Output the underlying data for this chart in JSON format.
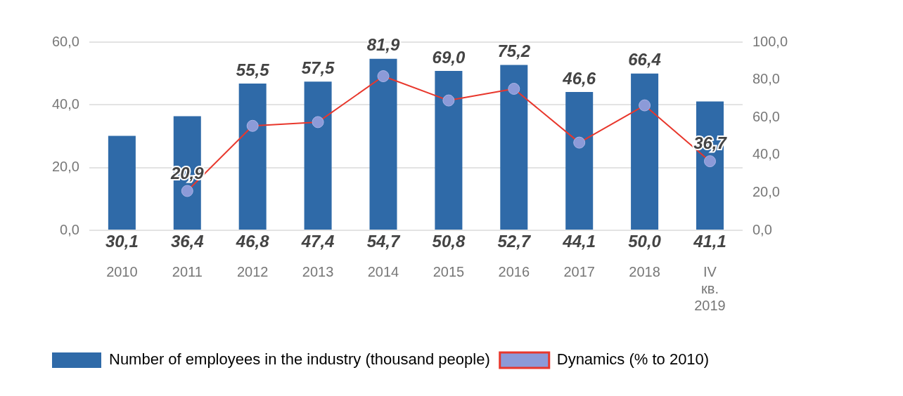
{
  "chart_data": {
    "type": "bar",
    "categories": [
      "2010",
      "2011",
      "2012",
      "2013",
      "2014",
      "2015",
      "2016",
      "2017",
      "2018",
      "IV кв. 2019"
    ],
    "series": [
      {
        "name": "Number of employees in the industry (thousand people)",
        "color": "#2f6aa8",
        "values": [
          30.1,
          36.4,
          46.8,
          47.4,
          54.7,
          50.8,
          52.7,
          44.1,
          50.0,
          41.1
        ],
        "value_labels": [
          "30,1",
          "36,4",
          "46,8",
          "47,4",
          "54,7",
          "50,8",
          "52,7",
          "44,1",
          "50,0",
          "41,1"
        ]
      },
      {
        "name": "Dynamics (% to 2010)",
        "type": "line",
        "axis": "y2",
        "color": "#e8372c",
        "values": [
          null,
          20.9,
          55.5,
          57.5,
          81.9,
          69.0,
          75.2,
          46.6,
          66.4,
          36.7
        ],
        "value_labels": [
          null,
          "20,9",
          "55,5",
          "57,5",
          "81,9",
          "69,0",
          "75,2",
          "46,6",
          "66,4",
          "36,7"
        ]
      }
    ],
    "ylim": [
      0,
      60
    ],
    "yticks": [
      {
        "value": 0,
        "label": "0,0"
      },
      {
        "value": 20,
        "label": "20,0"
      },
      {
        "value": 40,
        "label": "40,0"
      },
      {
        "value": 60,
        "label": "60,0"
      }
    ],
    "y2lim": [
      0,
      100
    ],
    "y2ticks": [
      {
        "value": 0,
        "label": "0,0"
      },
      {
        "value": 20,
        "label": "20,0"
      },
      {
        "value": 40,
        "label": "40,0"
      },
      {
        "value": 60,
        "label": "60,0"
      },
      {
        "value": 80,
        "label": "80,0"
      },
      {
        "value": 100,
        "label": "100,0"
      }
    ],
    "grid": "y",
    "legend": "bottom",
    "marker": "circle",
    "line_style": "solid"
  }
}
